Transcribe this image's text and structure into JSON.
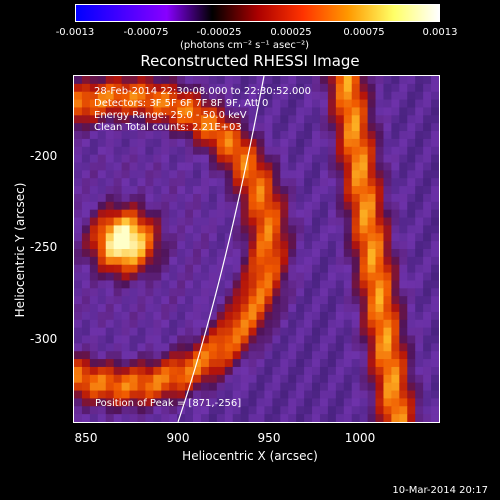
{
  "colorbar": {
    "ticks": [
      "-0.0013",
      "-0.00075",
      "-0.00025",
      "0.00025",
      "0.00075",
      "0.0013"
    ],
    "units": "(photons cm⁻² s⁻¹ asec⁻²)",
    "colors": [
      "#0000ff",
      "#4400ff",
      "#8800ff",
      "#000000",
      "#aa0000",
      "#ff3300",
      "#ff9900",
      "#ffff66",
      "#ffffff"
    ]
  },
  "header": {
    "title": "Reconstructed RHESSI Image",
    "line1": "28-Feb-2014 22:30:08.000 to 22:30:52.000",
    "line2": "Detectors: 3F 5F 6F 7F 8F 9F, Att 0",
    "line3": "Energy Range: 25.0 - 50.0 keV",
    "line4": "Clean    Total counts: 2.21E+03"
  },
  "footer": {
    "peak": "Position of Peak = [871,-256]",
    "stamp": "10-Mar-2014 20:17"
  },
  "chart_data": {
    "type": "heatmap",
    "title": "Reconstructed RHESSI Image",
    "xlabel": "Heliocentric X (arcsec)",
    "ylabel": "Heliocentric Y (arcsec)",
    "xlim": [
      845,
      1035
    ],
    "ylim": [
      -350,
      -170
    ],
    "xticks": [
      850,
      900,
      950,
      1000
    ],
    "yticks": [
      -200,
      -250,
      -300
    ],
    "peak": [
      871,
      -256
    ],
    "colorscale_min": -0.0013,
    "colorscale_max": 0.0013
  }
}
